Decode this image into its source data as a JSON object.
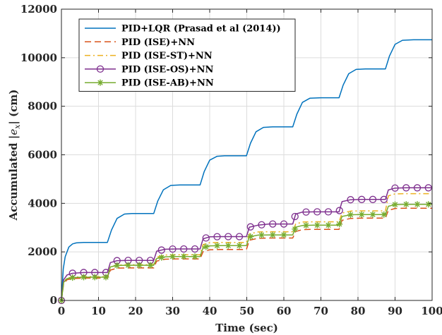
{
  "chart_data": {
    "type": "line",
    "xlabel": "Time (sec)",
    "ylabel_prefix": "Accumulated |",
    "ylabel_var": "e",
    "ylabel_sub": "x",
    "ylabel_suffix": "| (cm)",
    "xlim": [
      0,
      100
    ],
    "ylim": [
      0,
      12000
    ],
    "xticks": [
      0,
      10,
      20,
      30,
      40,
      50,
      60,
      70,
      80,
      90,
      100
    ],
    "yticks": [
      0,
      2000,
      4000,
      6000,
      8000,
      10000,
      12000
    ],
    "grid": true,
    "legend_position": "top-left",
    "series": [
      {
        "name": "PID+LQR (Prasad et al (2014))",
        "color": "#0072BD",
        "style": "solid",
        "marker": "none",
        "x": [
          0,
          0.5,
          1,
          2,
          3,
          4,
          6,
          8,
          10,
          12.4,
          13.5,
          15,
          17,
          19,
          22,
          24.9,
          26,
          27.5,
          29.5,
          32,
          35,
          37.4,
          38.5,
          40,
          42,
          44,
          47,
          49.9,
          51,
          52.5,
          54.5,
          57,
          60,
          62.4,
          63.5,
          65,
          67,
          70,
          72,
          74.9,
          76,
          77.5,
          79.5,
          82,
          85,
          87.4,
          88.5,
          90,
          92,
          95,
          97,
          100
        ],
        "y": [
          0,
          1300,
          1800,
          2200,
          2330,
          2370,
          2390,
          2390,
          2390,
          2390,
          2900,
          3380,
          3560,
          3580,
          3580,
          3580,
          4100,
          4560,
          4740,
          4760,
          4760,
          4760,
          5300,
          5780,
          5940,
          5960,
          5960,
          5960,
          6480,
          6950,
          7130,
          7150,
          7150,
          7150,
          7670,
          8160,
          8330,
          8350,
          8350,
          8350,
          8870,
          9340,
          9520,
          9540,
          9540,
          9540,
          10070,
          10550,
          10720,
          10740,
          10740,
          10740
        ]
      },
      {
        "name": "PID (ISE)+NN",
        "color": "#D95319",
        "style": "dashed",
        "marker": "none",
        "x": [
          0,
          0.6,
          1.5,
          3,
          6,
          9,
          12.4,
          13.2,
          15,
          18,
          21,
          24.9,
          25.7,
          28,
          31,
          34,
          37.4,
          38.2,
          40,
          43,
          46,
          49.9,
          50.7,
          53,
          56,
          59,
          62.4,
          63.2,
          65,
          68,
          71,
          74.9,
          75.7,
          78,
          81,
          84,
          87.4,
          88.2,
          90,
          93,
          96,
          100
        ],
        "y": [
          0,
          700,
          850,
          900,
          920,
          920,
          920,
          1250,
          1330,
          1340,
          1340,
          1340,
          1620,
          1700,
          1710,
          1710,
          1710,
          2010,
          2090,
          2100,
          2100,
          2100,
          2480,
          2560,
          2570,
          2570,
          2570,
          2840,
          2920,
          2930,
          2930,
          2930,
          3300,
          3380,
          3390,
          3390,
          3390,
          3710,
          3790,
          3800,
          3800,
          3800
        ]
      },
      {
        "name": "PID (ISE-ST)+NN",
        "color": "#EDB120",
        "style": "dashdot",
        "marker": "none",
        "x": [
          0,
          0.6,
          1.5,
          3,
          6,
          9,
          12.4,
          13.2,
          15,
          18,
          21,
          24.9,
          25.7,
          28,
          31,
          34,
          37.4,
          38.2,
          40,
          43,
          46,
          49.9,
          50.7,
          53,
          56,
          59,
          62.4,
          63.2,
          65,
          68,
          71,
          74.9,
          75.7,
          78,
          81,
          84,
          87.4,
          88.2,
          90,
          93,
          96,
          100
        ],
        "y": [
          0,
          780,
          920,
          960,
          980,
          980,
          980,
          1380,
          1460,
          1470,
          1470,
          1470,
          1780,
          1870,
          1880,
          1880,
          1880,
          2300,
          2380,
          2390,
          2390,
          2390,
          2740,
          2820,
          2830,
          2830,
          2830,
          3150,
          3230,
          3240,
          3240,
          3240,
          3600,
          3680,
          3690,
          3690,
          3690,
          4310,
          4390,
          4400,
          4400,
          4400
        ]
      },
      {
        "name": "PID (ISE-OS)+NN",
        "color": "#7E2F8E",
        "style": "solid",
        "marker": "circle",
        "x": [
          0,
          0.6,
          1.5,
          3,
          6,
          9,
          12.4,
          13.2,
          15,
          18,
          21,
          24.9,
          25.7,
          28,
          31,
          34,
          37.4,
          38.2,
          40,
          43,
          46,
          49.9,
          50.7,
          53,
          56,
          59,
          62.4,
          63.2,
          65,
          68,
          71,
          74.9,
          75.7,
          78,
          81,
          84,
          87.4,
          88.2,
          90,
          93,
          96,
          100
        ],
        "y": [
          0,
          850,
          1050,
          1120,
          1150,
          1150,
          1150,
          1560,
          1640,
          1650,
          1650,
          1650,
          2030,
          2110,
          2120,
          2120,
          2120,
          2540,
          2620,
          2630,
          2630,
          2630,
          3020,
          3100,
          3150,
          3150,
          3150,
          3560,
          3640,
          3650,
          3650,
          3650,
          4070,
          4150,
          4160,
          4160,
          4160,
          4550,
          4630,
          4640,
          4640,
          4640
        ]
      },
      {
        "name": "PID (ISE-AB)+NN",
        "color": "#77AC30",
        "style": "solid",
        "marker": "asterisk",
        "x": [
          0,
          0.6,
          1.5,
          3,
          6,
          9,
          12.4,
          13.2,
          15,
          18,
          21,
          24.9,
          25.7,
          28,
          31,
          34,
          37.4,
          38.2,
          40,
          43,
          46,
          49.9,
          50.7,
          53,
          56,
          59,
          62.4,
          63.2,
          65,
          68,
          71,
          74.9,
          75.7,
          78,
          81,
          84,
          87.4,
          88.2,
          90,
          93,
          96,
          100
        ],
        "y": [
          0,
          750,
          900,
          940,
          960,
          960,
          960,
          1380,
          1440,
          1450,
          1450,
          1450,
          1730,
          1800,
          1810,
          1810,
          1810,
          2180,
          2250,
          2260,
          2260,
          2260,
          2620,
          2690,
          2700,
          2700,
          2700,
          3020,
          3090,
          3100,
          3100,
          3100,
          3460,
          3530,
          3540,
          3540,
          3540,
          3880,
          3950,
          3960,
          3960,
          3960
        ]
      }
    ]
  }
}
